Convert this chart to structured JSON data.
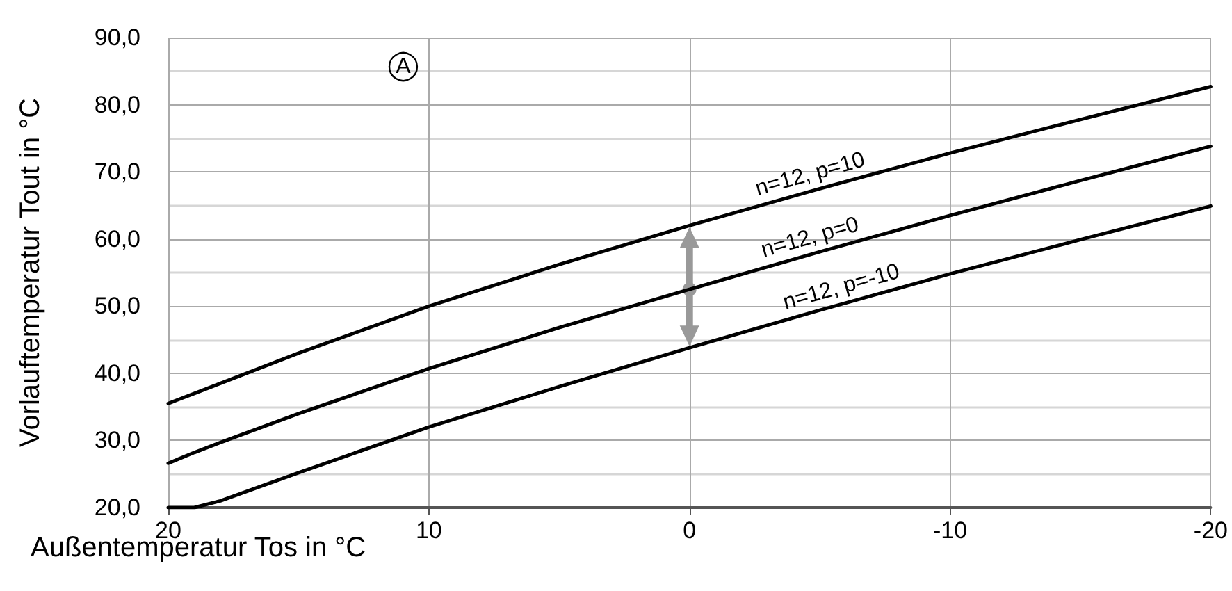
{
  "chart_data": {
    "type": "line",
    "xlabel": "Außentemperatur Tos in °C",
    "ylabel": "Vorlauftemperatur Tout in °C",
    "x": [
      20,
      19,
      18,
      15,
      10,
      5,
      0,
      -5,
      -10,
      -15,
      -20
    ],
    "series": [
      {
        "color": "#000000",
        "values": [
          35.5,
          37,
          38.5,
          43,
          50,
          56.2,
          62,
          67.5,
          72.8,
          77.8,
          82.7
        ]
      },
      {
        "color": "#000000",
        "values": [
          26.6,
          28.2,
          29.7,
          34,
          40.7,
          46.8,
          52.5,
          58.1,
          63.5,
          68.7,
          73.8
        ]
      },
      {
        "color": "#000000",
        "values": [
          20,
          20,
          21,
          25.2,
          32,
          38,
          43.8,
          49.4,
          54.8,
          59.9,
          64.9
        ]
      }
    ],
    "xlim": [
      20,
      -20
    ],
    "xticks": [
      20,
      10,
      0,
      -10,
      -20
    ],
    "ylim": [
      20,
      90
    ],
    "yticks": [
      {
        "value": 20,
        "label": "20,0"
      },
      {
        "value": 30,
        "label": "30,0"
      },
      {
        "value": 40,
        "label": "40,0"
      },
      {
        "value": 50,
        "label": "50,0"
      },
      {
        "value": 60,
        "label": "60,0"
      },
      {
        "value": 70,
        "label": "70,0"
      },
      {
        "value": 80,
        "label": "80,0"
      },
      {
        "value": 90,
        "label": "90,0"
      }
    ],
    "grid": true,
    "marker": "none",
    "line_style": "solid",
    "annotations": [
      "n=12, p=10",
      "n=12, p=0",
      "n=12, p=-10",
      "A"
    ]
  }
}
